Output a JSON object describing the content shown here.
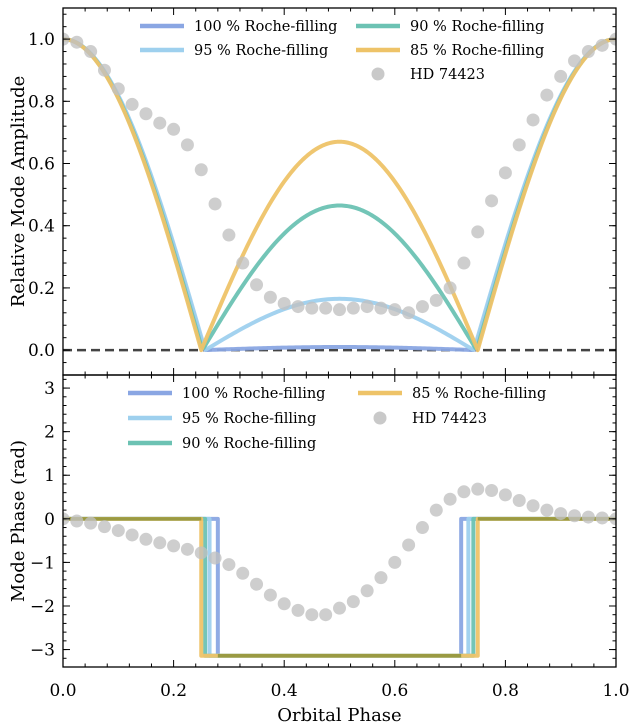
{
  "chart_data": [
    {
      "type": "line",
      "ylabel": "Relative Mode Amplitude",
      "xlim": [
        0.0,
        1.0
      ],
      "ylim": [
        -0.08,
        1.1
      ],
      "xticks": [
        "0.0",
        "0.2",
        "0.4",
        "0.6",
        "0.8",
        "1.0"
      ],
      "yticks": [
        "0.0",
        "0.2",
        "0.4",
        "0.6",
        "0.8",
        "1.0"
      ],
      "legend_position": "top",
      "reference_line": {
        "y": 0,
        "style": "dashed",
        "color": "#444444"
      },
      "series": [
        {
          "name": "100 % Roche-filling",
          "color": "#8aa6e3",
          "x1": 0.255,
          "x2": 0.745,
          "center_peak": 0.01
        },
        {
          "name": "95 % Roche-filling",
          "color": "#9ed0ee",
          "x1": 0.257,
          "x2": 0.743,
          "center_peak": 0.165
        },
        {
          "name": "90 % Roche-filling",
          "color": "#6cc2b3",
          "x1": 0.252,
          "x2": 0.748,
          "center_peak": 0.465
        },
        {
          "name": "85 % Roche-filling",
          "color": "#eec368",
          "x1": 0.25,
          "x2": 0.75,
          "center_peak": 0.67
        }
      ],
      "observed": {
        "name": "HD 74423",
        "color": "#c0c0c0",
        "x": [
          0.0,
          0.025,
          0.05,
          0.075,
          0.1,
          0.125,
          0.15,
          0.175,
          0.2,
          0.225,
          0.25,
          0.275,
          0.3,
          0.325,
          0.35,
          0.375,
          0.4,
          0.425,
          0.45,
          0.475,
          0.5,
          0.525,
          0.55,
          0.575,
          0.6,
          0.625,
          0.65,
          0.675,
          0.7,
          0.725,
          0.75,
          0.775,
          0.8,
          0.825,
          0.85,
          0.875,
          0.9,
          0.925,
          0.95,
          0.975,
          1.0
        ],
        "y": [
          1.0,
          0.99,
          0.96,
          0.9,
          0.84,
          0.79,
          0.76,
          0.73,
          0.71,
          0.66,
          0.58,
          0.47,
          0.37,
          0.28,
          0.21,
          0.17,
          0.15,
          0.14,
          0.135,
          0.135,
          0.13,
          0.135,
          0.14,
          0.135,
          0.13,
          0.12,
          0.14,
          0.16,
          0.2,
          0.28,
          0.38,
          0.48,
          0.57,
          0.66,
          0.74,
          0.82,
          0.88,
          0.93,
          0.96,
          0.98,
          1.0
        ]
      }
    },
    {
      "type": "line",
      "xlabel": "Orbital Phase",
      "ylabel": "Mode Phase (rad)",
      "xlim": [
        0.0,
        1.0
      ],
      "ylim": [
        -3.4,
        3.3
      ],
      "xticks": [
        "0.0",
        "0.2",
        "0.4",
        "0.6",
        "0.8",
        "1.0"
      ],
      "yticks": [
        "−3",
        "−2",
        "−1",
        "0",
        "1",
        "2",
        "3"
      ],
      "legend_position": "top",
      "series": [
        {
          "name": "100 % Roche-filling",
          "color": "#8aa6e3",
          "x1": 0.28,
          "x2": 0.72
        },
        {
          "name": "95 % Roche-filling",
          "color": "#9ed0ee",
          "x1": 0.265,
          "x2": 0.733
        },
        {
          "name": "90 % Roche-filling",
          "color": "#6cc2b3",
          "x1": 0.257,
          "x2": 0.742
        },
        {
          "name": "85 % Roche-filling",
          "color": "#eec368",
          "x1": 0.25,
          "x2": 0.75
        }
      ],
      "step_levels": [
        0,
        -3.1416
      ],
      "observed": {
        "name": "HD 74423",
        "color": "#c0c0c0",
        "x": [
          0.0,
          0.025,
          0.05,
          0.075,
          0.1,
          0.125,
          0.15,
          0.175,
          0.2,
          0.225,
          0.25,
          0.275,
          0.3,
          0.325,
          0.35,
          0.375,
          0.4,
          0.425,
          0.45,
          0.475,
          0.5,
          0.525,
          0.55,
          0.575,
          0.6,
          0.625,
          0.65,
          0.675,
          0.7,
          0.725,
          0.75,
          0.775,
          0.8,
          0.825,
          0.85,
          0.875,
          0.9,
          0.925,
          0.95,
          0.975,
          1.0
        ],
        "y": [
          0.0,
          -0.05,
          -0.1,
          -0.18,
          -0.27,
          -0.37,
          -0.47,
          -0.55,
          -0.62,
          -0.7,
          -0.78,
          -0.9,
          -1.05,
          -1.25,
          -1.5,
          -1.75,
          -1.95,
          -2.1,
          -2.2,
          -2.2,
          -2.05,
          -1.9,
          -1.65,
          -1.35,
          -1.0,
          -0.6,
          -0.2,
          0.2,
          0.45,
          0.62,
          0.68,
          0.65,
          0.55,
          0.42,
          0.3,
          0.2,
          0.12,
          0.07,
          0.04,
          0.02,
          0.0
        ]
      }
    }
  ]
}
